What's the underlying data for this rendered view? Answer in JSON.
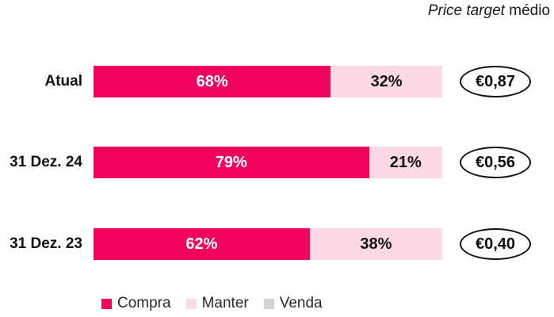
{
  "title": {
    "italic": "Price target",
    "regular": " médio"
  },
  "colors": {
    "compra": "#F0045C",
    "manter": "#FCD9E3",
    "venda": "#D2D2D2"
  },
  "chart_data": {
    "type": "bar",
    "orientation": "horizontal",
    "stacked": true,
    "title": "Price target médio",
    "categories": [
      "Atual",
      "31 Dez. 24",
      "31 Dez. 23"
    ],
    "series": [
      {
        "name": "Compra",
        "color": "#F0045C",
        "values": [
          68,
          79,
          62
        ]
      },
      {
        "name": "Manter",
        "color": "#FCD9E3",
        "values": [
          32,
          21,
          38
        ]
      },
      {
        "name": "Venda",
        "color": "#D2D2D2",
        "values": [
          0,
          0,
          0
        ]
      }
    ],
    "bar_labels": [
      [
        "68%",
        "32%"
      ],
      [
        "79%",
        "21%"
      ],
      [
        "62%",
        "38%"
      ]
    ],
    "price_targets": [
      "€0,87",
      "€0,56",
      "€0,40"
    ],
    "legend": [
      "Compra",
      "Manter",
      "Venda"
    ],
    "legend_position": "bottom",
    "xlim": [
      0,
      100
    ],
    "grid": false
  }
}
